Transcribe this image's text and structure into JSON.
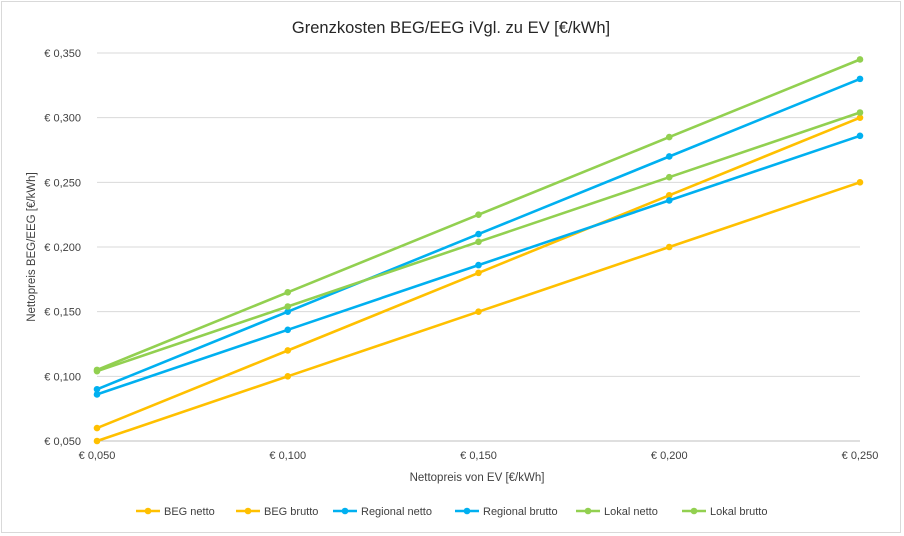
{
  "chart_data": {
    "type": "line",
    "title": "Grenzkosten BEG/EEG iVgl. zu EV [€/kWh]",
    "xlabel": "Nettopreis von EV [€/kWh]",
    "ylabel": "Nettopreis BEG/EEG [€/kWh]",
    "x": [
      0.05,
      0.1,
      0.15,
      0.2,
      0.25
    ],
    "x_tick_labels": [
      "€ 0,050",
      "€ 0,100",
      "€ 0,150",
      "€ 0,200",
      "€ 0,250"
    ],
    "ylim": [
      0.05,
      0.35
    ],
    "y_ticks": [
      0.05,
      0.1,
      0.15,
      0.2,
      0.25,
      0.3,
      0.35
    ],
    "y_tick_labels": [
      "€ 0,050",
      "€ 0,100",
      "€ 0,150",
      "€ 0,200",
      "€ 0,250",
      "€ 0,300",
      "€ 0,350"
    ],
    "grid": true,
    "legend_position": "bottom",
    "series": [
      {
        "name": "BEG netto",
        "color": "#FFC000",
        "values": [
          0.05,
          0.1,
          0.15,
          0.2,
          0.25
        ]
      },
      {
        "name": "BEG brutto",
        "color": "#FFC000",
        "values": [
          0.06,
          0.12,
          0.18,
          0.24,
          0.3
        ]
      },
      {
        "name": "Regional netto",
        "color": "#00B0F0",
        "values": [
          0.086,
          0.136,
          0.186,
          0.236,
          0.286
        ]
      },
      {
        "name": "Regional brutto",
        "color": "#00B0F0",
        "values": [
          0.09,
          0.15,
          0.21,
          0.27,
          0.33
        ]
      },
      {
        "name": "Lokal netto",
        "color": "#92D050",
        "values": [
          0.104,
          0.154,
          0.204,
          0.254,
          0.304
        ]
      },
      {
        "name": "Lokal brutto",
        "color": "#92D050",
        "values": [
          0.105,
          0.165,
          0.225,
          0.285,
          0.345
        ]
      }
    ]
  }
}
